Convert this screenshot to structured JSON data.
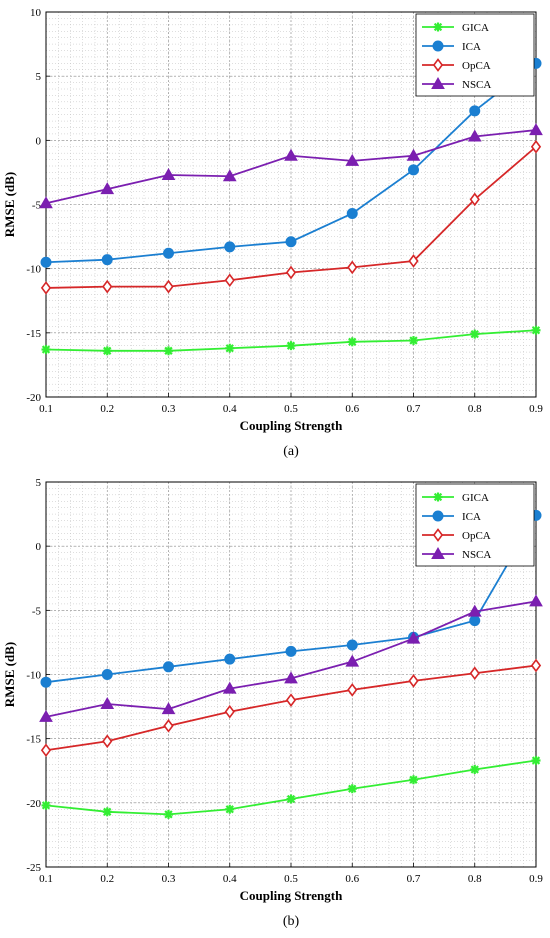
{
  "chart_data": [
    {
      "type": "line",
      "caption": "(a)",
      "xlabel": "Coupling Strength",
      "ylabel": "RMSE (dB)",
      "xlim": [
        0.1,
        0.9
      ],
      "ylim": [
        -20,
        10
      ],
      "xticks": [
        "0.1",
        "0.2",
        "0.3",
        "0.4",
        "0.5",
        "0.6",
        "0.7",
        "0.8",
        "0.9"
      ],
      "yticks": [
        "10",
        "5",
        "0",
        "-5",
        "-10",
        "-15",
        "-20"
      ],
      "grid": true,
      "legend_position": "top-right",
      "x": [
        0.1,
        0.2,
        0.3,
        0.4,
        0.5,
        0.6,
        0.7,
        0.8,
        0.9
      ],
      "series": [
        {
          "name": "GICA",
          "color": "#33ee33",
          "marker": "star",
          "values": [
            -16.3,
            -16.4,
            -16.4,
            -16.2,
            -16.0,
            -15.7,
            -15.6,
            -15.1,
            -14.8
          ]
        },
        {
          "name": "ICA",
          "color": "#1b7fd1",
          "marker": "circle",
          "values": [
            -9.5,
            -9.3,
            -8.8,
            -8.3,
            -7.9,
            -5.7,
            -2.3,
            2.3,
            6.0
          ]
        },
        {
          "name": "OpCA",
          "color": "#d62728",
          "marker": "diamond",
          "values": [
            -11.5,
            -11.4,
            -11.4,
            -10.9,
            -10.3,
            -9.9,
            -9.4,
            -4.6,
            -0.5
          ]
        },
        {
          "name": "NSCA",
          "color": "#7b1fb0",
          "marker": "triangle",
          "values": [
            -4.9,
            -3.8,
            -2.7,
            -2.8,
            -1.2,
            -1.6,
            -1.2,
            0.3,
            0.8
          ]
        }
      ]
    },
    {
      "type": "line",
      "caption": "(b)",
      "xlabel": "Coupling Strength",
      "ylabel": "RMSE (dB)",
      "xlim": [
        0.1,
        0.9
      ],
      "ylim": [
        -25,
        5
      ],
      "xticks": [
        "0.1",
        "0.2",
        "0.3",
        "0.4",
        "0.5",
        "0.6",
        "0.7",
        "0.8",
        "0.9"
      ],
      "yticks": [
        "5",
        "0",
        "-5",
        "-10",
        "-15",
        "-20",
        "-25"
      ],
      "grid": true,
      "legend_position": "top-right",
      "x": [
        0.1,
        0.2,
        0.3,
        0.4,
        0.5,
        0.6,
        0.7,
        0.8,
        0.9
      ],
      "series": [
        {
          "name": "GICA",
          "color": "#33ee33",
          "marker": "star",
          "values": [
            -20.2,
            -20.7,
            -20.9,
            -20.5,
            -19.7,
            -18.9,
            -18.2,
            -17.4,
            -16.7
          ]
        },
        {
          "name": "ICA",
          "color": "#1b7fd1",
          "marker": "circle",
          "values": [
            -10.6,
            -10.0,
            -9.4,
            -8.8,
            -8.2,
            -7.7,
            -7.1,
            -5.8,
            2.4
          ]
        },
        {
          "name": "OpCA",
          "color": "#d62728",
          "marker": "diamond",
          "values": [
            -15.9,
            -15.2,
            -14.0,
            -12.9,
            -12.0,
            -11.2,
            -10.5,
            -9.9,
            -9.3
          ]
        },
        {
          "name": "NSCA",
          "color": "#7b1fb0",
          "marker": "triangle",
          "values": [
            -13.3,
            -12.3,
            -12.7,
            -11.1,
            -10.3,
            -9.0,
            -7.2,
            -5.1,
            -4.3
          ]
        }
      ]
    }
  ]
}
